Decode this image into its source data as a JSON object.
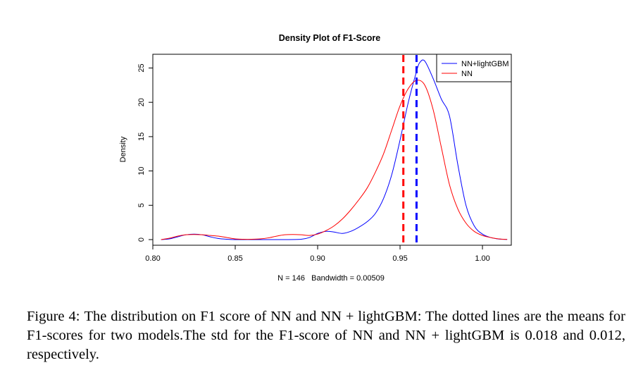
{
  "figure": {
    "caption_label": "Figure 4:",
    "caption_text": "The distribution on F1 score of NN and NN + lightGBM: The dotted lines are the means for F1-scores for two models.The std for the F1-score of NN and NN + lightGBM is 0.018 and 0.012, respectively."
  },
  "chart_data": {
    "type": "line",
    "title": "Density Plot of F1-Score",
    "xlabel": "N = 146   Bandwidth = 0.00509",
    "ylabel": "Density",
    "xlim": [
      0.8,
      1.0175
    ],
    "ylim": [
      0,
      27
    ],
    "xticks": [
      0.8,
      0.85,
      0.9,
      0.95,
      1.0
    ],
    "xtick_labels": [
      "0.80",
      "0.85",
      "0.90",
      "0.95",
      "1.00"
    ],
    "yticks": [
      0,
      5,
      10,
      15,
      20,
      25
    ],
    "ytick_labels": [
      "0",
      "5",
      "10",
      "15",
      "20",
      "25"
    ],
    "grid": false,
    "legend_position": "top-right",
    "series": [
      {
        "name": "NN+lightGBM",
        "color": "#0000ff",
        "x": [
          0.805,
          0.81,
          0.815,
          0.82,
          0.825,
          0.83,
          0.835,
          0.84,
          0.845,
          0.85,
          0.86,
          0.87,
          0.88,
          0.89,
          0.895,
          0.9,
          0.905,
          0.91,
          0.915,
          0.92,
          0.925,
          0.93,
          0.935,
          0.94,
          0.945,
          0.95,
          0.955,
          0.96,
          0.962,
          0.965,
          0.97,
          0.975,
          0.98,
          0.985,
          0.99,
          0.995,
          1.0,
          1.005,
          1.01,
          1.015
        ],
        "y": [
          0.0,
          0.1,
          0.4,
          0.7,
          0.8,
          0.7,
          0.4,
          0.15,
          0.05,
          0.0,
          0.0,
          0.0,
          0.0,
          0.05,
          0.3,
          0.9,
          1.2,
          1.1,
          0.9,
          1.2,
          1.8,
          2.6,
          3.8,
          6.0,
          9.5,
          14.5,
          20.0,
          24.5,
          25.8,
          26.0,
          23.5,
          20.5,
          18.0,
          11.0,
          5.0,
          2.0,
          0.8,
          0.3,
          0.08,
          0.02
        ]
      },
      {
        "name": "NN",
        "color": "#ff0000",
        "x": [
          0.805,
          0.81,
          0.815,
          0.82,
          0.825,
          0.83,
          0.835,
          0.84,
          0.845,
          0.85,
          0.855,
          0.86,
          0.865,
          0.87,
          0.875,
          0.88,
          0.885,
          0.89,
          0.895,
          0.9,
          0.905,
          0.91,
          0.915,
          0.92,
          0.925,
          0.93,
          0.935,
          0.94,
          0.945,
          0.95,
          0.955,
          0.96,
          0.965,
          0.97,
          0.975,
          0.98,
          0.985,
          0.99,
          0.995,
          1.0,
          1.005,
          1.01,
          1.015
        ],
        "y": [
          0.0,
          0.2,
          0.5,
          0.7,
          0.75,
          0.7,
          0.6,
          0.5,
          0.3,
          0.1,
          0.05,
          0.05,
          0.1,
          0.25,
          0.5,
          0.7,
          0.75,
          0.7,
          0.6,
          0.8,
          1.3,
          2.0,
          3.0,
          4.3,
          5.8,
          7.5,
          9.8,
          12.5,
          16.0,
          19.5,
          22.0,
          23.2,
          22.5,
          19.0,
          13.5,
          8.0,
          4.5,
          2.4,
          1.2,
          0.6,
          0.3,
          0.1,
          0.02
        ]
      }
    ],
    "mean_lines": [
      {
        "series": "NN",
        "x": 0.952,
        "color": "#ff0000",
        "style": "dashed"
      },
      {
        "series": "NN+lightGBM",
        "x": 0.96,
        "color": "#0000ff",
        "style": "dashed"
      }
    ]
  }
}
